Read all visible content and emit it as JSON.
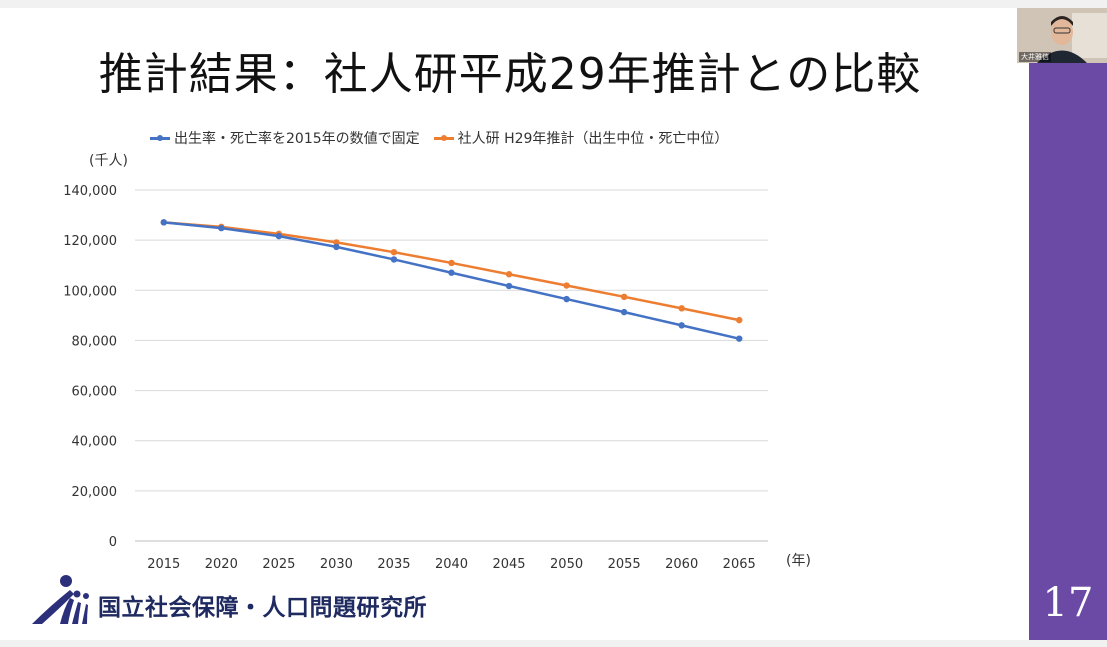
{
  "title": "推計結果：社人研平成29年推計との比較",
  "slide_number": "17",
  "organization": "国立社会保障・人口問題研究所",
  "video_name": "大井雅信",
  "colors": {
    "sidebar": "#6a4aa5",
    "series_fixed": "#4472c4",
    "series_ipss": "#ed7d31",
    "logo": "#2c2f7a"
  },
  "chart_data": {
    "type": "line",
    "y_unit": "(千人)",
    "x_unit": "(年)",
    "x": [
      2015,
      2020,
      2025,
      2030,
      2035,
      2040,
      2045,
      2050,
      2055,
      2060,
      2065
    ],
    "ylim": [
      0,
      140000
    ],
    "yticks": [
      "0",
      "20,000",
      "40,000",
      "60,000",
      "80,000",
      "100,000",
      "120,000",
      "140,000"
    ],
    "yticks_values": [
      0,
      20000,
      40000,
      60000,
      80000,
      100000,
      120000,
      140000
    ],
    "grid": true,
    "legend": "top",
    "series": [
      {
        "name": "出生率・死亡率を2015年の数値で固定",
        "color": "#4472c4",
        "values": [
          127100,
          124800,
          121600,
          117300,
          112300,
          107000,
          101700,
          96500,
          91300,
          86000,
          80700
        ]
      },
      {
        "name": "社人研 H29年推計（出生中位・死亡中位）",
        "color": "#ed7d31",
        "values": [
          127100,
          125300,
          122500,
          119100,
          115200,
          110900,
          106400,
          101900,
          97400,
          92800,
          88100
        ]
      }
    ]
  }
}
